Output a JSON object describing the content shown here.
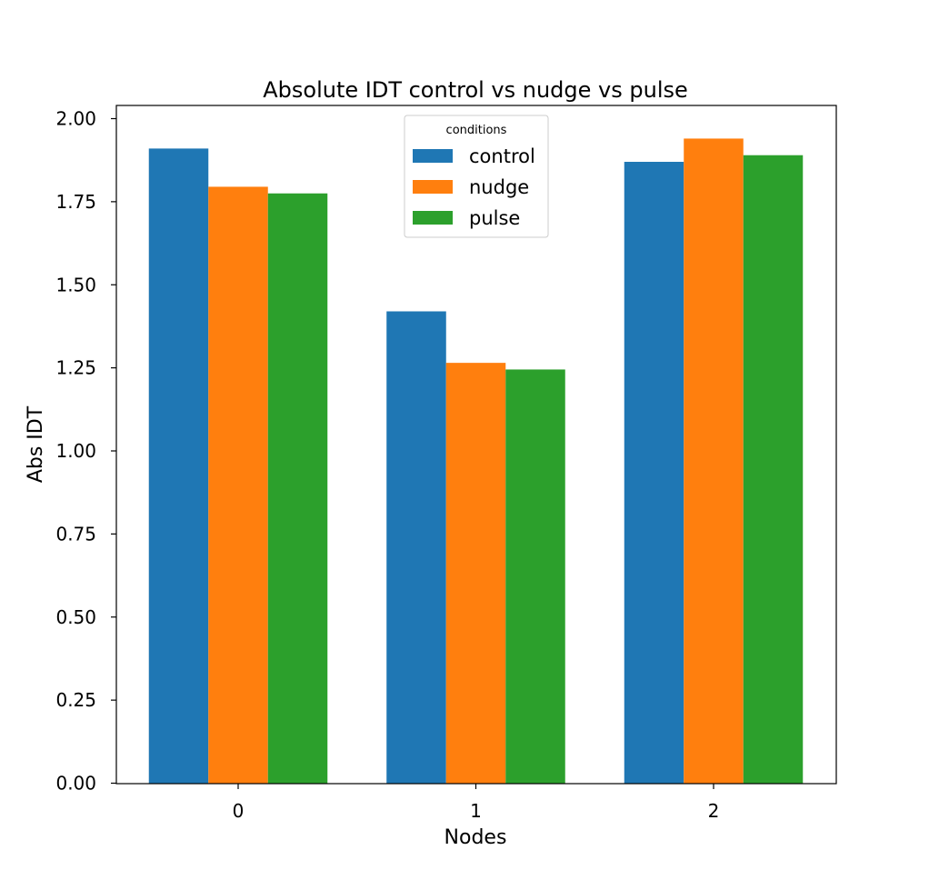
{
  "chart_data": {
    "type": "bar",
    "title": "Absolute IDT control vs nudge vs pulse",
    "xlabel": "Nodes",
    "ylabel": "Abs IDT",
    "categories": [
      "0",
      "1",
      "2"
    ],
    "series": [
      {
        "name": "control",
        "color": "#1f77b4",
        "values": [
          1.91,
          1.42,
          1.87
        ]
      },
      {
        "name": "nudge",
        "color": "#ff7f0e",
        "values": [
          1.795,
          1.265,
          1.94
        ]
      },
      {
        "name": "pulse",
        "color": "#2ca02c",
        "values": [
          1.775,
          1.245,
          1.89
        ]
      }
    ],
    "ylim": [
      0,
      2.04
    ],
    "yticks": [
      "0.00",
      "0.25",
      "0.50",
      "0.75",
      "1.00",
      "1.25",
      "1.50",
      "1.75",
      "2.00"
    ],
    "ytick_values": [
      0,
      0.25,
      0.5,
      0.75,
      1.0,
      1.25,
      1.5,
      1.75,
      2.0
    ],
    "legend": {
      "title": "conditions",
      "position": "top-center"
    },
    "grid": false
  }
}
